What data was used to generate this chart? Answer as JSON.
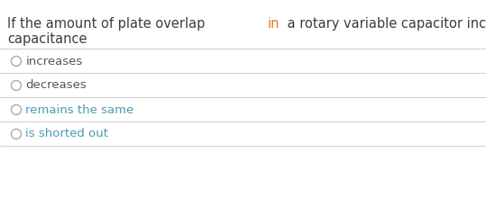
{
  "background_color": "#ffffff",
  "question_segments_line1": [
    {
      "text": "If the amount of plate overlap ",
      "color": "#3d3d3d"
    },
    {
      "text": "in",
      "color": "#e07820"
    },
    {
      "text": " a rotary variable capacitor increases, the",
      "color": "#3d3d3d"
    }
  ],
  "question_line2": "capacitance",
  "question_color": "#3d3d3d",
  "options": [
    {
      "text": "increases",
      "color": "#555555"
    },
    {
      "text": "decreases",
      "color": "#555555"
    },
    {
      "text": "remains the same",
      "color": "#4a9ab5"
    },
    {
      "text": "is shorted out",
      "color": "#4a9ab5"
    }
  ],
  "divider_color": "#cccccc",
  "circle_color": "#aaaaaa",
  "font_size_question": 10.5,
  "font_size_options": 9.5,
  "figsize": [
    5.39,
    2.29
  ],
  "dpi": 100
}
